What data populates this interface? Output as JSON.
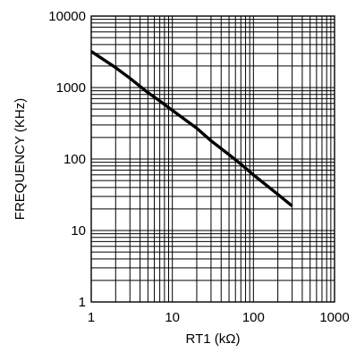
{
  "chart_data": {
    "type": "line",
    "xlabel": "RT1 (kΩ)",
    "ylabel": "FREQUENCY (KHz)",
    "x_scale": "log",
    "y_scale": "log",
    "xlim": [
      1,
      1000
    ],
    "ylim": [
      1,
      10000
    ],
    "grid": true,
    "x_ticks": [
      1,
      10,
      100,
      1000
    ],
    "y_ticks": [
      1,
      10,
      100,
      1000,
      10000
    ],
    "x_tick_labels": [
      "1",
      "10",
      "100",
      "1000"
    ],
    "y_tick_labels": [
      "1",
      "10",
      "100",
      "1000",
      "10000"
    ],
    "series": [
      {
        "color": "#000000",
        "x": [
          1,
          2,
          3,
          5,
          7,
          10,
          20,
          30,
          50,
          70,
          100,
          200,
          300
        ],
        "y": [
          3200,
          1900,
          1350,
          850,
          650,
          480,
          270,
          180,
          115,
          85,
          60,
          32,
          22
        ]
      }
    ]
  }
}
